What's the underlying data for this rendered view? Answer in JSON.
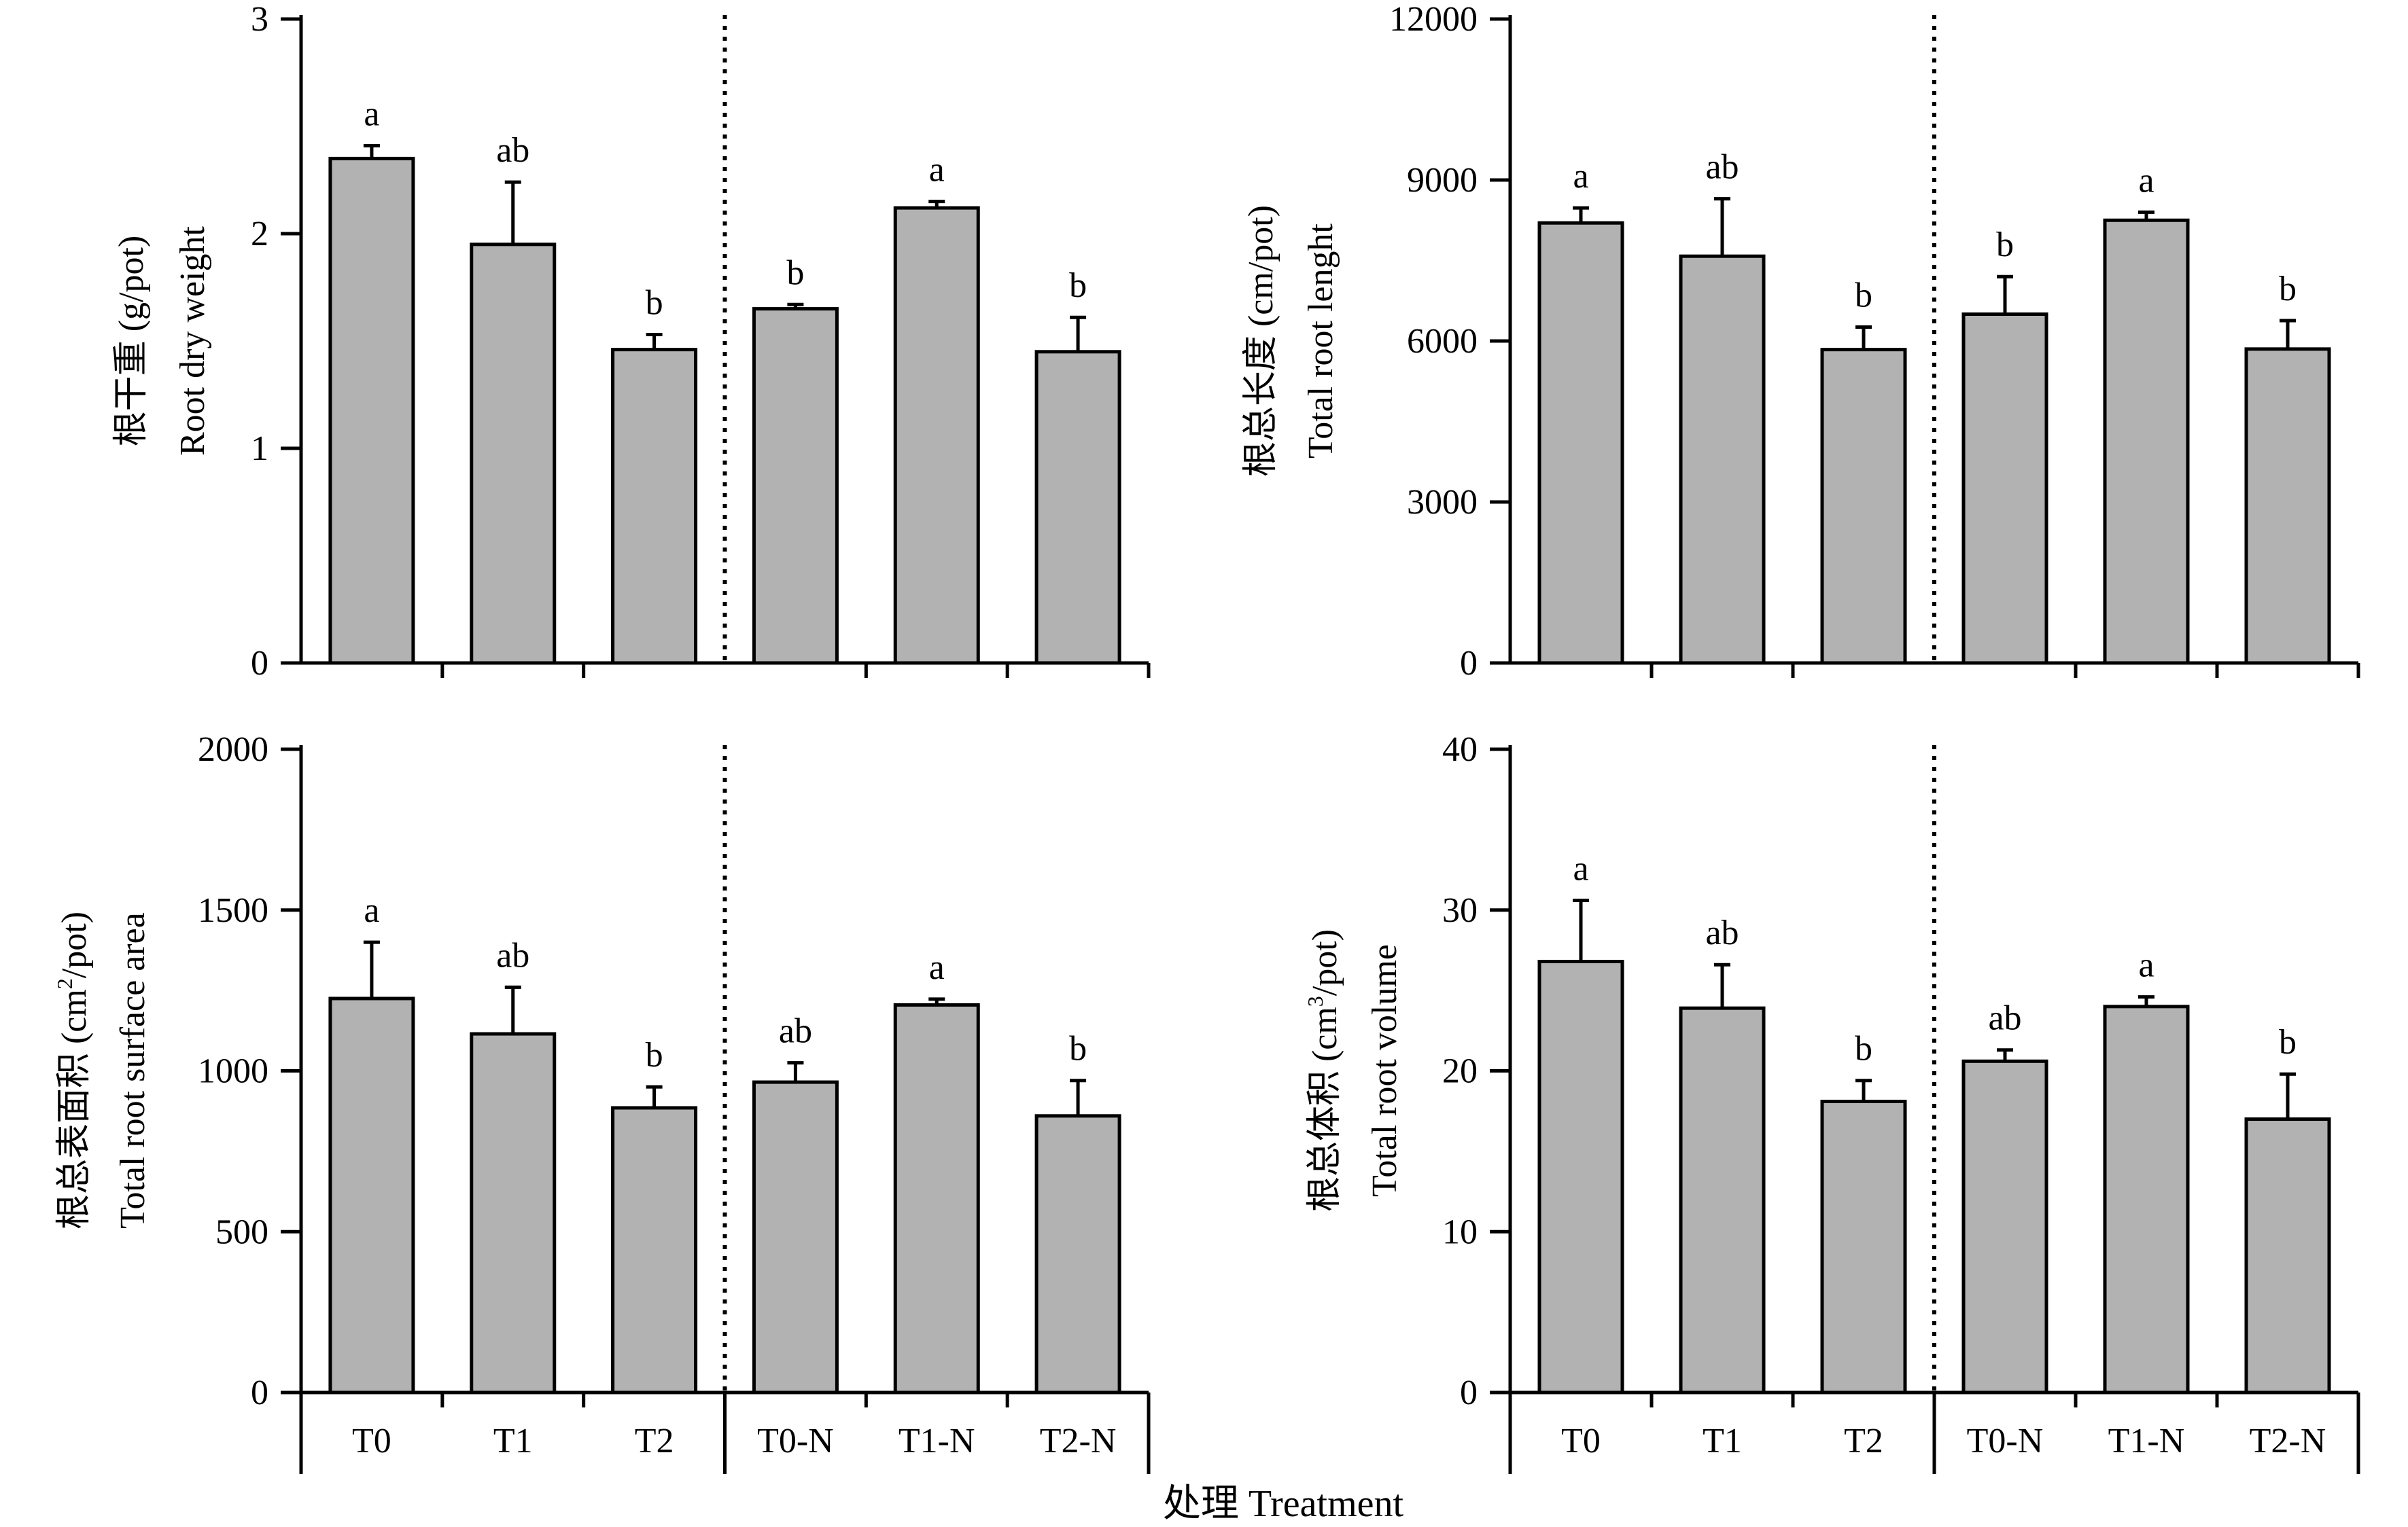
{
  "colors": {
    "bar_fill": "#b2b2b2",
    "stroke": "#000000",
    "background": "#ffffff"
  },
  "categories": [
    "T0",
    "T1",
    "T2",
    "T0-N",
    "T1-N",
    "T2-N"
  ],
  "x_label": "处理 Treatment",
  "chart_data": [
    {
      "type": "bar",
      "title": "",
      "ylabel_cn": "根干重 (g/pot)",
      "ylabel_en": "Root dry weight",
      "ylim": [
        0,
        3
      ],
      "yticks": [
        0,
        1,
        2,
        3
      ],
      "categories": [
        "T0",
        "T1",
        "T2",
        "T0-N",
        "T1-N",
        "T2-N"
      ],
      "values": [
        2.35,
        1.95,
        1.46,
        1.65,
        2.12,
        1.45
      ],
      "errors": [
        0.06,
        0.29,
        0.07,
        0.02,
        0.03,
        0.16
      ],
      "sig": [
        "a",
        "ab",
        "b",
        "b",
        "a",
        "b"
      ]
    },
    {
      "type": "bar",
      "title": "",
      "ylabel_cn": "根总长度 (cm/pot)",
      "ylabel_en": "Total root lenght",
      "ylim": [
        0,
        12000
      ],
      "yticks": [
        0,
        3000,
        6000,
        9000,
        12000
      ],
      "categories": [
        "T0",
        "T1",
        "T2",
        "T0-N",
        "T1-N",
        "T2-N"
      ],
      "values": [
        8200,
        7580,
        5840,
        6500,
        8250,
        5850
      ],
      "errors": [
        280,
        1070,
        420,
        700,
        150,
        530
      ],
      "sig": [
        "a",
        "ab",
        "b",
        "b",
        "a",
        "b"
      ]
    },
    {
      "type": "bar",
      "title": "",
      "ylabel_cn_pre": "根总表面积 (cm",
      "ylabel_sup": "2",
      "ylabel_cn_post": "/pot)",
      "ylabel_en": "Total root surface area",
      "ylim": [
        0,
        2000
      ],
      "yticks": [
        0,
        500,
        1000,
        1500,
        2000
      ],
      "categories": [
        "T0",
        "T1",
        "T2",
        "T0-N",
        "T1-N",
        "T2-N"
      ],
      "values": [
        1225,
        1115,
        885,
        965,
        1205,
        860
      ],
      "errors": [
        175,
        145,
        65,
        60,
        18,
        110
      ],
      "sig": [
        "a",
        "ab",
        "b",
        "ab",
        "a",
        "b"
      ]
    },
    {
      "type": "bar",
      "title": "",
      "ylabel_cn_pre": "根总体积 (cm",
      "ylabel_sup": "3",
      "ylabel_cn_post": "/pot)",
      "ylabel_en": "Total root volume",
      "ylim": [
        0,
        40
      ],
      "yticks": [
        0,
        10,
        20,
        30,
        40
      ],
      "categories": [
        "T0",
        "T1",
        "T2",
        "T0-N",
        "T1-N",
        "T2-N"
      ],
      "values": [
        26.8,
        23.9,
        18.1,
        20.6,
        24.0,
        17.0
      ],
      "errors": [
        3.8,
        2.7,
        1.3,
        0.7,
        0.6,
        2.8
      ],
      "sig": [
        "a",
        "ab",
        "b",
        "ab",
        "a",
        "b"
      ]
    }
  ]
}
